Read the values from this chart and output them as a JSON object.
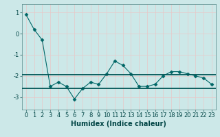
{
  "title": "",
  "xlabel": "Humidex (Indice chaleur)",
  "ylabel": "",
  "x": [
    0,
    1,
    2,
    3,
    4,
    5,
    6,
    7,
    8,
    9,
    10,
    11,
    12,
    13,
    14,
    15,
    16,
    17,
    18,
    19,
    20,
    21,
    22,
    23
  ],
  "y": [
    0.9,
    0.2,
    -0.3,
    -2.5,
    -2.3,
    -2.5,
    -3.1,
    -2.6,
    -2.3,
    -2.4,
    -1.9,
    -1.3,
    -1.5,
    -1.9,
    -2.5,
    -2.5,
    -2.4,
    -2.0,
    -1.8,
    -1.8,
    -1.9,
    -2.0,
    -2.1,
    -2.4
  ],
  "line_color": "#006666",
  "marker": "D",
  "marker_size": 2.5,
  "background_color": "#cce8e8",
  "grid_color": "#e8c8c8",
  "ylim": [
    -3.6,
    1.4
  ],
  "xlim": [
    -0.5,
    23.5
  ],
  "hline1_y": -1.95,
  "hline2_y": -2.6,
  "hline_color": "#005555",
  "tick_label_fontsize": 6,
  "xlabel_fontsize": 7,
  "yticks": [
    -3,
    -2,
    -1,
    0,
    1
  ],
  "ytick_labels": [
    "-3",
    "-2",
    "-1",
    "0",
    "1"
  ]
}
